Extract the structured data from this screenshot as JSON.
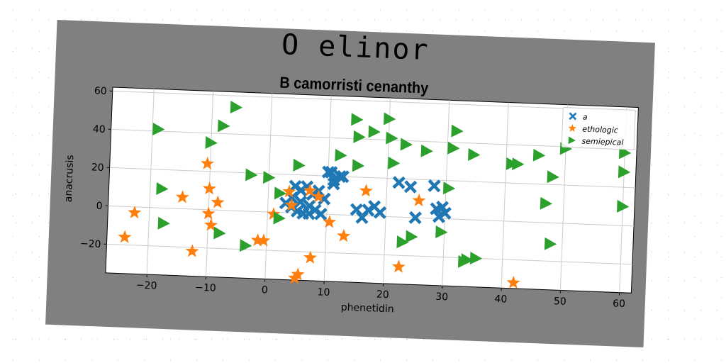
{
  "figure": {
    "suptitle": "O elinor",
    "colors": {
      "background": "#808080",
      "plot_area": "#ffffff",
      "grid": "#cccccc"
    }
  },
  "chart_data": {
    "type": "scatter",
    "title": "B camorristi cenanthy",
    "xlabel": "phenetidin",
    "ylabel": "anacrusis",
    "xlim": [
      -27,
      62
    ],
    "ylim": [
      -35,
      62
    ],
    "xticks": [
      "−20",
      "−10",
      "0",
      "10",
      "20",
      "30",
      "40",
      "50",
      "60"
    ],
    "xtick_values": [
      -20,
      -10,
      0,
      10,
      20,
      30,
      40,
      50,
      60
    ],
    "yticks": [
      "−20",
      "0",
      "20",
      "40",
      "60"
    ],
    "ytick_values": [
      -20,
      0,
      20,
      40,
      60
    ],
    "grid": true,
    "legend_position": "top-right",
    "series": [
      {
        "name": "a",
        "marker": "x-filled",
        "color": "#1f77b4",
        "x": [
          4.0,
          5.0,
          6.0,
          7.0,
          8.0,
          9.0,
          10.0,
          11.0,
          12.0,
          4.5,
          5.5,
          6.5,
          7.5,
          8.5,
          9.5,
          10.5,
          3.0,
          4.0,
          5.5,
          7.0,
          11.0,
          12.5,
          17.0,
          18.0,
          19.0,
          15.0,
          16.0,
          22.0,
          24.0,
          25.0,
          28.5,
          29.0,
          30.0,
          28.0,
          29.5
        ],
        "y": [
          3.0,
          1.0,
          0.0,
          4.0,
          2.0,
          0.0,
          22.0,
          18.0,
          20.0,
          14.0,
          12.0,
          14.0,
          10.0,
          12.0,
          8.0,
          22.0,
          5.0,
          8.0,
          6.0,
          0.0,
          16.0,
          20.0,
          3.0,
          5.0,
          2.0,
          3.0,
          -1.0,
          18.0,
          16.0,
          0.0,
          5.0,
          1.0,
          3.0,
          17.0,
          6.0
        ]
      },
      {
        "name": "ethologic",
        "marker": "star",
        "color": "#ff7f0e",
        "x": [
          -24.0,
          -22.5,
          -14.5,
          -12.5,
          -10.5,
          -10.0,
          -10.0,
          -9.5,
          -8.5,
          -1.5,
          -0.5,
          1.0,
          3.5,
          4.0,
          5.0,
          5.5,
          7.0,
          7.5,
          8.5,
          10.5,
          13.0,
          16.5,
          22.5,
          25.5,
          42.0
        ],
        "y": [
          -16.0,
          -3.0,
          6.0,
          -22.0,
          24.0,
          11.0,
          -2.0,
          -8.0,
          4.0,
          -15.0,
          -15.0,
          -1.0,
          11.0,
          4.0,
          -34.0,
          -32.0,
          12.0,
          -23.0,
          9.0,
          -4.0,
          -11.0,
          13.0,
          -26.0,
          9.0,
          -32.0
        ]
      },
      {
        "name": "semiepical",
        "marker": "triangle-right",
        "color": "#2ca02c",
        "x": [
          -19.0,
          -18.0,
          -17.5,
          -10.0,
          -8.0,
          -8.0,
          -6.0,
          -3.5,
          -3.0,
          0.0,
          2.0,
          2.0,
          5.0,
          12.0,
          14.5,
          15.0,
          15.0,
          17.5,
          20.0,
          20.5,
          21.0,
          23.0,
          23.0,
          24.5,
          26.5,
          29.5,
          30.5,
          31.0,
          31.5,
          33.5,
          34.0,
          34.5,
          35.5,
          41.0,
          42.0,
          45.5,
          47.0,
          48.0,
          48.0,
          50.0,
          60.0,
          60.0,
          60.0
        ],
        "y": [
          41.0,
          10.0,
          -8.0,
          35.0,
          44.0,
          -12.0,
          54.0,
          -18.0,
          19.0,
          18.0,
          -3.0,
          10.0,
          25.0,
          31.0,
          50.0,
          41.0,
          26.0,
          44.0,
          51.0,
          41.0,
          28.0,
          38.0,
          -13.0,
          -10.0,
          35.0,
          -7.0,
          16.0,
          37.0,
          46.0,
          -22.0,
          -21.0,
          34.0,
          -20.0,
          30.0,
          30.0,
          35.0,
          10.0,
          -11.0,
          24.0,
          39.0,
          10.0,
          28.0,
          38.0
        ]
      }
    ]
  }
}
